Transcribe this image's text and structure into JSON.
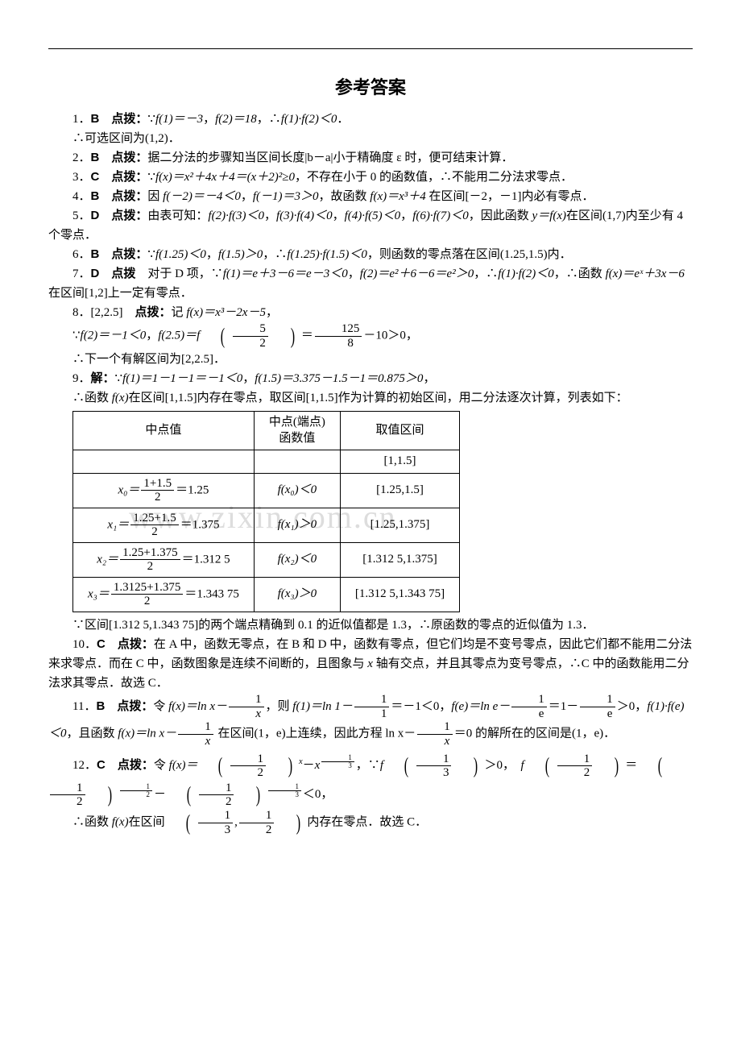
{
  "title": "参考答案",
  "watermark": "www.zixin.com.cn",
  "items": {
    "q1": {
      "num": "1",
      "ans": "B",
      "label": "点拨：",
      "text1": "∵",
      "f1_eq": "f(1)＝－3",
      "sep1": "，",
      "f2_eq": "f(2)＝18",
      "sep2": "，∴",
      "prod": "f(1)·f(2)＜0",
      "period": "．",
      "line2": "∴可选区间为(1,2)．"
    },
    "q2": {
      "num": "2",
      "ans": "B",
      "label": "点拨：",
      "text": "据二分法的步骤知当区间长度|b－a|小于精确度 ε 时，便可结束计算．"
    },
    "q3": {
      "num": "3",
      "ans": "C",
      "label": "点拨：",
      "pre": "∵",
      "fx": "f(x)＝x²＋4x＋4＝(x＋2)²≥0",
      "post": "，不存在小于 0 的函数值，∴不能用二分法求零点．"
    },
    "q4": {
      "num": "4",
      "ans": "B",
      "label": "点拨：",
      "pre": "因 ",
      "fa": "f(－2)＝－4＜0",
      "sep": "，",
      "fb": "f(－1)＝3＞0",
      "mid": "，故函数 ",
      "fx": "f(x)＝x³＋4",
      "post": " 在区间[－2，－1]内必有零点．"
    },
    "q5": {
      "num": "5",
      "ans": "D",
      "label": "点拨：",
      "pre": "由表可知：",
      "p1": "f(2)·f(3)＜0",
      "c1": "，",
      "p2": "f(3)·f(4)＜0",
      "c2": "，",
      "p3": "f(4)·f(5)＜0",
      "c3": "，",
      "p4": "f(6)·f(7)＜0",
      "post": "，因此函数 ",
      "yfx": "y＝f(x)",
      "tail": "在区间(1,7)内至少有 4 个零点．"
    },
    "q6": {
      "num": "6",
      "ans": "B",
      "label": "点拨：",
      "pre": "∵",
      "fa": "f(1.25)＜0",
      "c1": "，",
      "fb": "f(1.5)＞0",
      "c2": "，∴",
      "prod": "f(1.25)·f(1.5)＜0",
      "post": "，则函数的零点落在区间(1.25,1.5)内．"
    },
    "q7": {
      "num": "7",
      "ans": "D",
      "label": "点拨",
      "pre": "　对于 D 项，∵",
      "f1": "f(1)＝e＋3－6＝e－3＜0",
      "c1": "，",
      "f2": "f(2)＝e²＋6－6＝e²＞0",
      "c2": "，∴",
      "prod": "f(1)·f(2)＜0",
      "mid": "，∴函数 ",
      "fx": "f(x)＝eˣ＋3x－6",
      "post": " 在区间[1,2]上一定有零点．"
    },
    "q8": {
      "num": "8",
      "interval": "[2,2.5]",
      "label": "点拨：",
      "pre": "记 ",
      "fx": "f(x)＝x³－2x－5",
      "comma": "，",
      "l2pre": "∵",
      "f2": "f(2)＝－1＜0",
      "c1": "，",
      "f25a": "f(2.5)＝",
      "fparen": "f",
      "frac1n": "5",
      "frac1d": "2",
      "eq": "＝",
      "frac2n": "125",
      "frac2d": "8",
      "tail": "－10＞0，",
      "l3": "∴下一个有解区间为[2,2.5]．"
    },
    "q9": {
      "num": "9",
      "label": "解：",
      "pre": "∵",
      "f1": "f(1)＝1－1－1＝－1＜0",
      "c1": "，",
      "f15": "f(1.5)＝3.375－1.5－1＝0.875＞0",
      "comma": "，",
      "l2a": "∴函数 ",
      "fx": "f(x)",
      "l2b": "在区间[1,1.5]内存在零点，取区间[1,1.5]作为计算的初始区间，用二分法逐次计算，列表如下：",
      "table": {
        "h1": "中点值",
        "h2a": "中点(端点)",
        "h2b": "函数值",
        "h3": "取值区间",
        "r0c3": "[1,1.5]",
        "r1": {
          "left": "x₀＝",
          "num": "1+1.5",
          "den": "2",
          "eq": "＝1.25",
          "mid": "f(x₀)＜0",
          "intv": "[1.25,1.5]"
        },
        "r2": {
          "left": "x₁＝",
          "num": "1.25+1.5",
          "den": "2",
          "eq": "＝1.375",
          "mid": "f(x₁)＞0",
          "intv": "[1.25,1.375]"
        },
        "r3": {
          "left": "x₂＝",
          "num": "1.25+1.375",
          "den": "2",
          "eq": "＝1.312 5",
          "mid": "f(x₂)＜0",
          "intv": "[1.312 5,1.375]"
        },
        "r4": {
          "left": "x₃＝",
          "num": "1.3125+1.375",
          "den": "2",
          "eq": "＝1.343 75",
          "mid": "f(x₃)＞0",
          "intv": "[1.312 5,1.343 75]"
        }
      },
      "tail": "∵区间[1.312 5,1.343 75]的两个端点精确到 0.1 的近似值都是 1.3，∴原函数的零点的近似值为 1.3．"
    },
    "q10": {
      "num": "10",
      "ans": "C",
      "label": "点拨：",
      "pre": "在 A 中，函数无零点，在 B 和 D 中，函数有零点，但它们均是不变号零点，因此它们都不能用二分法来求零点．而在 C 中，函数图象是连续不间断的，且图象与 ",
      "xaxis": "x",
      "post": " 轴有交点，并且其零点为变号零点，∴C 中的函数能用二分法求其零点．故选 C．"
    },
    "q11": {
      "num": "11",
      "ans": "B",
      "label": "点拨：",
      "pre": "令 ",
      "fx": "f(x)＝ln x－",
      "f1n": "1",
      "f1d": "x",
      "mida": "，则 ",
      "f1eq": "f(1)＝ln 1－",
      "f2n": "1",
      "f2d": "1",
      "midb": "＝－1＜0，",
      "feeq": "f(e)＝ln e－",
      "f3n": "1",
      "f3d": "e",
      "midc": "＝1－",
      "f4n": "1",
      "f4d": "e",
      "l2a": "＞0，",
      "prod": "f(1)·f(e)＜0",
      "l2b": "，且函数 ",
      "fx2": "f(x)＝ln x－",
      "f5n": "1",
      "f5d": "x",
      "l2c": " 在区间(1，e)上连续，因此方程 ln x－",
      "f6n": "1",
      "f6d": "x",
      "l2d": "＝0 的解所在的区间是(1，e)．"
    },
    "q12": {
      "num": "12",
      "ans": "C",
      "label": "点拨：",
      "pre": "令 ",
      "fx": "f(x)＝",
      "halfn": "1",
      "halfd": "2",
      "expx": "x",
      "minus": "－",
      "xpow_n": "1",
      "xpow_d": "3",
      "c1": "，∵",
      "fthird": "f",
      "thn": "1",
      "thd": "3",
      "gt0": "＞0，",
      "fhalf": "f",
      "hn": "1",
      "hd": "2",
      "eq": "＝",
      "e1n": "1",
      "e1d": "2",
      "minus2": "－",
      "lt0": "＜0，",
      "tail_a": "∴函数 ",
      "fxs": "f(x)",
      "tail_b": "在区间",
      "intn1": "1",
      "intd1": "3",
      "comma": ",",
      "intn2": "1",
      "intd2": "2",
      "tail_c": "内存在零点．故选 C．"
    }
  }
}
